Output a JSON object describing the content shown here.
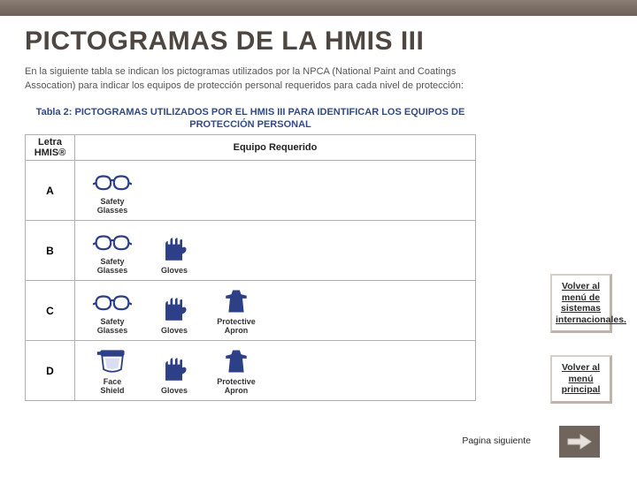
{
  "colors": {
    "topbar_from": "#8a7d72",
    "topbar_to": "#6d6058",
    "title": "#4e4640",
    "text": "#555555",
    "table_title": "#334a85",
    "border": "#b0b0b0",
    "icon_blue": "#2c3f87",
    "arrow_bg": "#6f655c",
    "arrow_fg": "#e6e1db"
  },
  "title": "PICTOGRAMAS DE LA HMIS III",
  "intro": "En la siguiente tabla se indican los pictogramas utilizados por la NPCA (National Paint and Coatings Assocation) para indicar los equipos de protección personal requeridos para cada nivel de protección:",
  "table_title": "Tabla 2: PICTOGRAMAS UTILIZADOS POR EL HMIS III PARA IDENTIFICAR LOS EQUIPOS DE PROTECCIÓN PERSONAL",
  "table": {
    "headers": {
      "letter": "Letra HMIS®",
      "equip": "Equipo Requerido"
    },
    "rows": [
      {
        "letter": "A",
        "items": [
          {
            "icon": "glasses",
            "label": "Safety\nGlasses"
          }
        ]
      },
      {
        "letter": "B",
        "items": [
          {
            "icon": "glasses",
            "label": "Safety\nGlasses"
          },
          {
            "icon": "gloves",
            "label": "Gloves"
          }
        ]
      },
      {
        "letter": "C",
        "items": [
          {
            "icon": "glasses",
            "label": "Safety\nGlasses"
          },
          {
            "icon": "gloves",
            "label": "Gloves"
          },
          {
            "icon": "apron",
            "label": "Protective\nApron"
          }
        ]
      },
      {
        "letter": "D",
        "items": [
          {
            "icon": "faceshield",
            "label": "Face\nShield"
          },
          {
            "icon": "gloves",
            "label": "Gloves"
          },
          {
            "icon": "apron",
            "label": "Protective\nApron"
          }
        ]
      }
    ]
  },
  "nav": {
    "menu_sistemas": "Volver al menú de sistemas internacionales.",
    "menu_principal": "Volver al menú principal",
    "pagina_siguiente": "Pagina siguiente"
  }
}
